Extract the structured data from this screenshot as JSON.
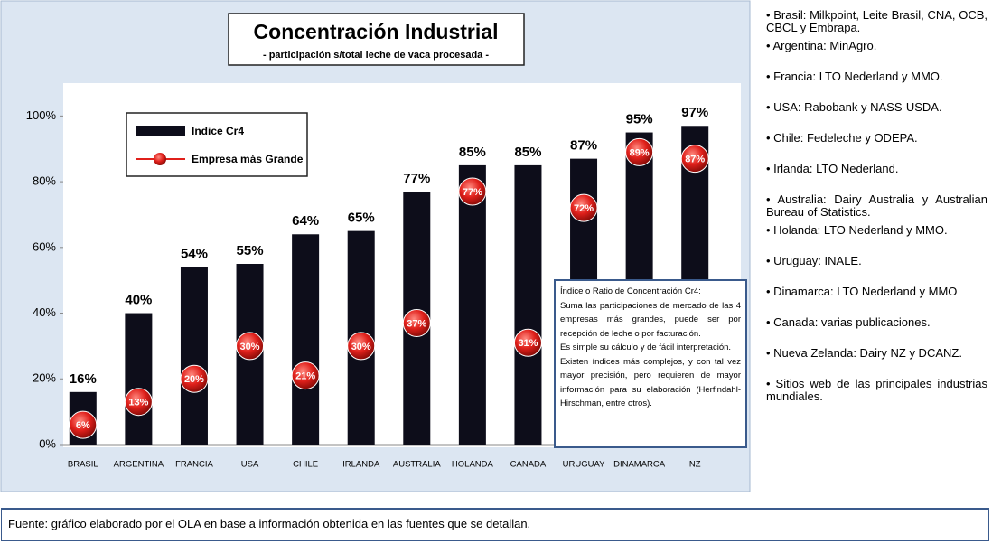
{
  "chart_data": {
    "type": "bar",
    "title": "Concentración Industrial",
    "subtitle": "- participación  s/total leche de vaca procesada -",
    "categories": [
      "BRASIL",
      "ARGENTINA",
      "FRANCIA",
      "USA",
      "CHILE",
      "IRLANDA",
      "AUSTRALIA",
      "HOLANDA",
      "CANADA",
      "URUGUAY",
      "DINAMARCA",
      "NZ"
    ],
    "series": [
      {
        "name": "Indice Cr4",
        "color": "#0d0d1a",
        "values": [
          16,
          40,
          54,
          55,
          64,
          65,
          77,
          85,
          85,
          87,
          95,
          97
        ],
        "value_labels": [
          "16%",
          "40%",
          "54%",
          "55%",
          "64%",
          "65%",
          "77%",
          "85%",
          "85%",
          "87%",
          "95%",
          "97%"
        ]
      },
      {
        "name": "Empresa más Grande",
        "color": "#e0201b",
        "values": [
          6,
          13,
          20,
          30,
          21,
          30,
          37,
          77,
          31,
          72,
          89,
          87
        ],
        "value_labels": [
          "6%",
          "13%",
          "20%",
          "30%",
          "21%",
          "30%",
          "37%",
          "77%",
          "31%",
          "72%",
          "89%",
          "87%"
        ]
      }
    ],
    "ylim": [
      0,
      110
    ],
    "yticks": [
      {
        "value": 0,
        "label": "0%"
      },
      {
        "value": 20,
        "label": "20%"
      },
      {
        "value": 40,
        "label": "40%"
      },
      {
        "value": 60,
        "label": "60%"
      },
      {
        "value": 80,
        "label": "80%"
      },
      {
        "value": 100,
        "label": "100%"
      }
    ],
    "legend": "upper left",
    "grid": false
  },
  "textbox": {
    "title": "Índice o Ratio de Concentración Cr4:",
    "paragraphs": [
      "Suma las participaciones de mercado de las 4 empresas más grandes, puede ser por recepción de leche o por facturación.",
      "Es simple su cálculo y de fácil interpretación.",
      "Existen índices más complejos, y con tal vez mayor precisión, pero requieren de mayor información para su elaboración (Herfindahl-Hirschman, entre otros)."
    ]
  },
  "sources": [
    "• Brasil: Milkpoint, Leite Brasil, CNA, OCB, CBCL y Embrapa.",
    "• Argentina: MinAgro.",
    "• Francia: LTO Nederland y MMO.",
    "• USA: Rabobank y NASS-USDA.",
    "• Chile: Fedeleche y ODEPA.",
    "• Irlanda: LTO Nederland.",
    "• Australia: Dairy Australia y Australian Bureau of Statistics.",
    "• Holanda: LTO Nederland y MMO.",
    "• Uruguay: INALE.",
    "• Dinamarca: LTO Nederland y MMO",
    "•  Canada: varias publicaciones.",
    "• Nueva Zelanda: Dairy NZ y DCANZ.",
    "• Sitios web de las principales industrias mundiales."
  ],
  "footer": "Fuente: gráfico elaborado por el OLA en base a información obtenida en las fuentes que se  detallan."
}
